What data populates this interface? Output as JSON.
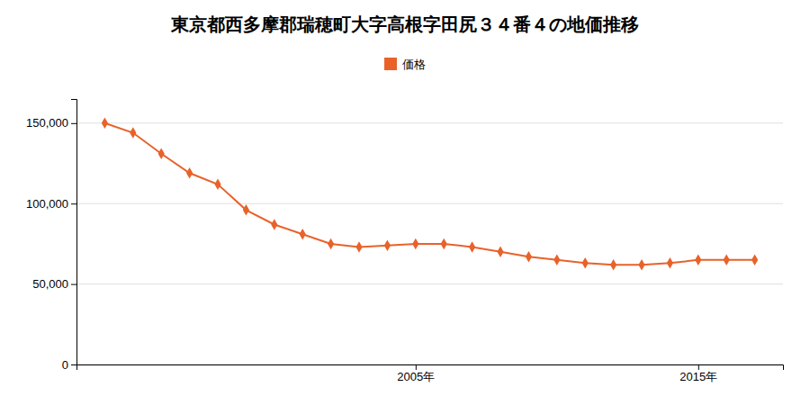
{
  "chart_data": {
    "type": "line",
    "title": "東京都西多摩郡瑞穂町大字高根字田尻３４番４の地価推移",
    "x": [
      1994,
      1995,
      1996,
      1997,
      1998,
      1999,
      2000,
      2001,
      2002,
      2003,
      2004,
      2005,
      2006,
      2007,
      2008,
      2009,
      2010,
      2011,
      2012,
      2013,
      2014,
      2015,
      2016,
      2017
    ],
    "series": [
      {
        "name": "価格",
        "color": "#e8622a",
        "marker": "diamond",
        "values": [
          150000,
          144000,
          131000,
          119000,
          112000,
          96000,
          87000,
          81000,
          75000,
          73000,
          74000,
          75000,
          75000,
          73000,
          70000,
          67000,
          65000,
          63000,
          62000,
          62000,
          63000,
          65000,
          65000,
          65000
        ]
      }
    ],
    "xlim": [
      1993,
      2018
    ],
    "xticks": [
      {
        "value": 2005,
        "label": "2005年"
      },
      {
        "value": 2015,
        "label": "2015年"
      }
    ],
    "ylim": [
      0,
      165000
    ],
    "yticks": [
      0,
      {
        "value": 50000,
        "label": "50,000"
      },
      {
        "value": 100000,
        "label": "100,000"
      },
      {
        "value": 150000,
        "label": "150,000"
      }
    ],
    "grid": true,
    "legend": "top"
  }
}
